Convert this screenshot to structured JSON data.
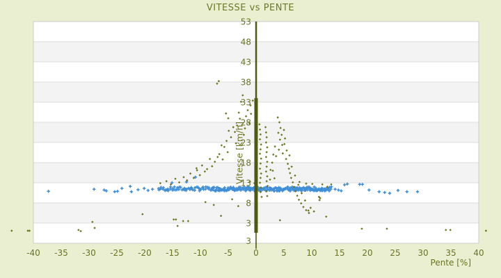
{
  "chart_data": {
    "type": "scatter",
    "title": "VITESSE vs PENTE",
    "xlabel": "Pente [%]",
    "ylabel": "Vitesse [km/h]",
    "xlim": [
      -40,
      40
    ],
    "ylim": [
      -2,
      53
    ],
    "x_ticks": [
      -40,
      -35,
      -30,
      -25,
      -20,
      -15,
      -10,
      -5,
      0,
      5,
      10,
      15,
      20,
      25,
      30,
      35,
      40
    ],
    "y_ticks": [
      53,
      48,
      43,
      38,
      33,
      28,
      23,
      18,
      13,
      8,
      3
    ],
    "y_axis_extra_bottom_label": "3",
    "grid": "horizontal-only",
    "band_fill": "alternating",
    "legend": "none",
    "colors": {
      "page_bg": "#e9efd0",
      "plot_bg": "#ffffff",
      "band_alt": "#f3f3f3",
      "gridline": "#dcdcdc",
      "plot_border": "#cccccc",
      "olive": "#6f7520",
      "olive_dark": "#4e5a10",
      "blue": "#3f8ed6",
      "text": "#6b7422",
      "title_text": "#6d7829"
    },
    "series": [
      {
        "name": "pente-scatter-olive",
        "color": "#6f7520",
        "marker": "diamond",
        "zero_column": {
          "x": 0,
          "v_min": 0.6,
          "v_max": 53,
          "segments": [
            [
              53,
              34,
              2.5
            ],
            [
              34,
              0.6,
              5
            ]
          ]
        },
        "points": [
          [
            -0.6,
            33.4
          ],
          [
            -1.0,
            32.2
          ],
          [
            -1.5,
            31.0
          ],
          [
            -0.9,
            30.1
          ],
          [
            -1.8,
            29.5
          ],
          [
            -2.4,
            34.7
          ],
          [
            -2.7,
            33.1
          ],
          [
            -1.2,
            27.8
          ],
          [
            -2.0,
            26.5
          ],
          [
            -2.9,
            28.9
          ],
          [
            -3.1,
            30.4
          ],
          [
            -2.2,
            24.9
          ],
          [
            -3.4,
            27.2
          ],
          [
            -3.8,
            25.6
          ],
          [
            -4.1,
            26.8
          ],
          [
            -4.5,
            24.3
          ],
          [
            -4.9,
            25.9
          ],
          [
            -3.6,
            22.8
          ],
          [
            -5.3,
            23.4
          ],
          [
            -5.7,
            21.9
          ],
          [
            -5.1,
            20.6
          ],
          [
            -6.2,
            22.3
          ],
          [
            -6.6,
            20.1
          ],
          [
            -6.0,
            18.8
          ],
          [
            -6.9,
            19.4
          ],
          [
            -7.0,
            37.6
          ],
          [
            -6.7,
            38.2
          ],
          [
            -5.4,
            30.2
          ],
          [
            -5.0,
            29.0
          ],
          [
            -7.4,
            18.2
          ],
          [
            -7.9,
            17.1
          ],
          [
            -8.3,
            18.9
          ],
          [
            -8.8,
            16.4
          ],
          [
            -9.2,
            15.8
          ],
          [
            -9.7,
            17.3
          ],
          [
            -10.1,
            14.9
          ],
          [
            -10.6,
            16.1
          ],
          [
            -11.2,
            14.2
          ],
          [
            -11.8,
            15.3
          ],
          [
            -12.4,
            13.6
          ],
          [
            -13.0,
            14.4
          ],
          [
            -10.7,
            16.6
          ],
          [
            -13.8,
            13.1
          ],
          [
            -14.5,
            14.0
          ],
          [
            -15.3,
            12.6
          ],
          [
            -16.1,
            13.4
          ],
          [
            -17.2,
            12.9
          ],
          [
            -20.4,
            5.2
          ],
          [
            -14.8,
            3.9
          ],
          [
            -14.4,
            3.9
          ],
          [
            -14.1,
            2.3
          ],
          [
            -31.9,
            1.3
          ],
          [
            -31.5,
            1.0
          ],
          [
            -29.4,
            3.3
          ],
          [
            -29.0,
            1.8
          ],
          [
            -41.0,
            1.1
          ],
          [
            -40.7,
            1.1
          ],
          [
            -43.9,
            1.1
          ],
          [
            -13.1,
            3.5
          ],
          [
            -12.2,
            3.5
          ],
          [
            -9.1,
            8.2
          ],
          [
            -7.6,
            7.5
          ],
          [
            -6.3,
            4.8
          ],
          [
            -4.3,
            8.9
          ],
          [
            -3.2,
            7.2
          ],
          [
            -0.3,
            12.9
          ],
          [
            -1.1,
            13.3
          ],
          [
            0.6,
            27.5
          ],
          [
            0.7,
            26.2
          ],
          [
            0.8,
            25.0
          ],
          [
            0.7,
            23.8
          ],
          [
            0.9,
            22.5
          ],
          [
            0.8,
            21.3
          ],
          [
            0.7,
            20.2
          ],
          [
            0.9,
            19.0
          ],
          [
            0.8,
            17.8
          ],
          [
            0.7,
            16.5
          ],
          [
            0.9,
            15.3
          ],
          [
            0.8,
            14.2
          ],
          [
            0.7,
            13.0
          ],
          [
            0.9,
            11.8
          ],
          [
            0.8,
            10.7
          ],
          [
            1.0,
            9.5
          ],
          [
            1.7,
            26.8
          ],
          [
            1.8,
            25.5
          ],
          [
            1.9,
            24.3
          ],
          [
            1.8,
            23.0
          ],
          [
            2.0,
            21.8
          ],
          [
            1.9,
            20.6
          ],
          [
            1.8,
            19.4
          ],
          [
            2.0,
            18.2
          ],
          [
            1.9,
            17.0
          ],
          [
            1.8,
            15.8
          ],
          [
            2.0,
            14.6
          ],
          [
            1.9,
            13.4
          ],
          [
            2.1,
            12.2
          ],
          [
            1.9,
            10.9
          ],
          [
            2.0,
            9.7
          ],
          [
            2.6,
            16.2
          ],
          [
            2.5,
            13.8
          ],
          [
            3.9,
            29.2
          ],
          [
            4.2,
            28.0
          ],
          [
            4.4,
            26.6
          ],
          [
            4.0,
            25.4
          ],
          [
            4.6,
            24.9
          ],
          [
            4.3,
            23.7
          ],
          [
            4.7,
            22.4
          ],
          [
            4.1,
            21.2
          ],
          [
            4.8,
            20.3
          ],
          [
            3.6,
            19.6
          ],
          [
            5.0,
            26.1
          ],
          [
            5.2,
            24.0
          ],
          [
            3.4,
            22.0
          ],
          [
            3.1,
            20.0
          ],
          [
            2.9,
            18.0
          ],
          [
            3.0,
            16.0
          ],
          [
            3.3,
            14.1
          ],
          [
            5.4,
            18.9
          ],
          [
            5.7,
            17.7
          ],
          [
            5.9,
            16.5
          ],
          [
            6.1,
            15.4
          ],
          [
            6.3,
            14.2
          ],
          [
            6.6,
            13.1
          ],
          [
            6.8,
            12.0
          ],
          [
            7.1,
            10.9
          ],
          [
            7.4,
            9.8
          ],
          [
            7.7,
            8.8
          ],
          [
            8.1,
            7.9
          ],
          [
            8.5,
            7.0
          ],
          [
            9.0,
            6.2
          ],
          [
            9.5,
            5.5
          ],
          [
            5.5,
            21.0
          ],
          [
            5.1,
            22.6
          ],
          [
            6.0,
            19.8
          ],
          [
            6.4,
            17.0
          ],
          [
            7.0,
            14.8
          ],
          [
            7.6,
            12.5
          ],
          [
            8.2,
            10.4
          ],
          [
            8.8,
            8.6
          ],
          [
            9.8,
            6.8
          ],
          [
            10.4,
            5.9
          ],
          [
            9.0,
            12.8
          ],
          [
            10.1,
            12.7
          ],
          [
            11.9,
            12.6
          ],
          [
            12.8,
            12.0
          ],
          [
            13.5,
            12.6
          ],
          [
            7.8,
            13.2
          ],
          [
            11.3,
            9.5
          ],
          [
            11.5,
            9.2
          ],
          [
            11.4,
            8.7
          ],
          [
            9.4,
            6.1
          ],
          [
            12.6,
            4.6
          ],
          [
            4.3,
            3.7
          ],
          [
            19.0,
            1.6
          ],
          [
            23.5,
            1.6
          ],
          [
            34.1,
            1.3
          ],
          [
            34.9,
            1.3
          ],
          [
            41.3,
            1.1
          ]
        ]
      },
      {
        "name": "vitesse-scatter-blue",
        "color": "#3f8ed6",
        "marker": "plus",
        "band": {
          "x_min": -17.5,
          "x_max": 13.6,
          "v_center": 11.5,
          "v_jitter": 0.5,
          "count": 170,
          "dense_x_min": -8.0,
          "dense_x_max": 13.5,
          "dense_count": 110
        },
        "points": [
          [
            -37.3,
            10.9
          ],
          [
            -29.1,
            11.4
          ],
          [
            -27.3,
            11.2
          ],
          [
            -26.9,
            11.0
          ],
          [
            -25.4,
            10.8
          ],
          [
            -24.9,
            10.9
          ],
          [
            -24.1,
            11.6
          ],
          [
            -22.6,
            12.1
          ],
          [
            -22.4,
            10.8
          ],
          [
            -21.2,
            11.3
          ],
          [
            -20.1,
            11.6
          ],
          [
            -19.4,
            11.1
          ],
          [
            -18.6,
            11.4
          ],
          [
            -15.1,
            13.0
          ],
          [
            -12.5,
            13.2
          ],
          [
            -10.9,
            14.4
          ],
          [
            14.2,
            11.4
          ],
          [
            14.8,
            11.2
          ],
          [
            15.3,
            11.0
          ],
          [
            15.9,
            12.5
          ],
          [
            16.4,
            12.7
          ],
          [
            18.6,
            12.6
          ],
          [
            19.1,
            12.6
          ],
          [
            20.3,
            11.2
          ],
          [
            22.1,
            10.8
          ],
          [
            23.1,
            10.6
          ],
          [
            24.0,
            10.4
          ],
          [
            25.5,
            11.1
          ],
          [
            27.1,
            10.8
          ],
          [
            29.0,
            10.8
          ]
        ]
      }
    ]
  }
}
